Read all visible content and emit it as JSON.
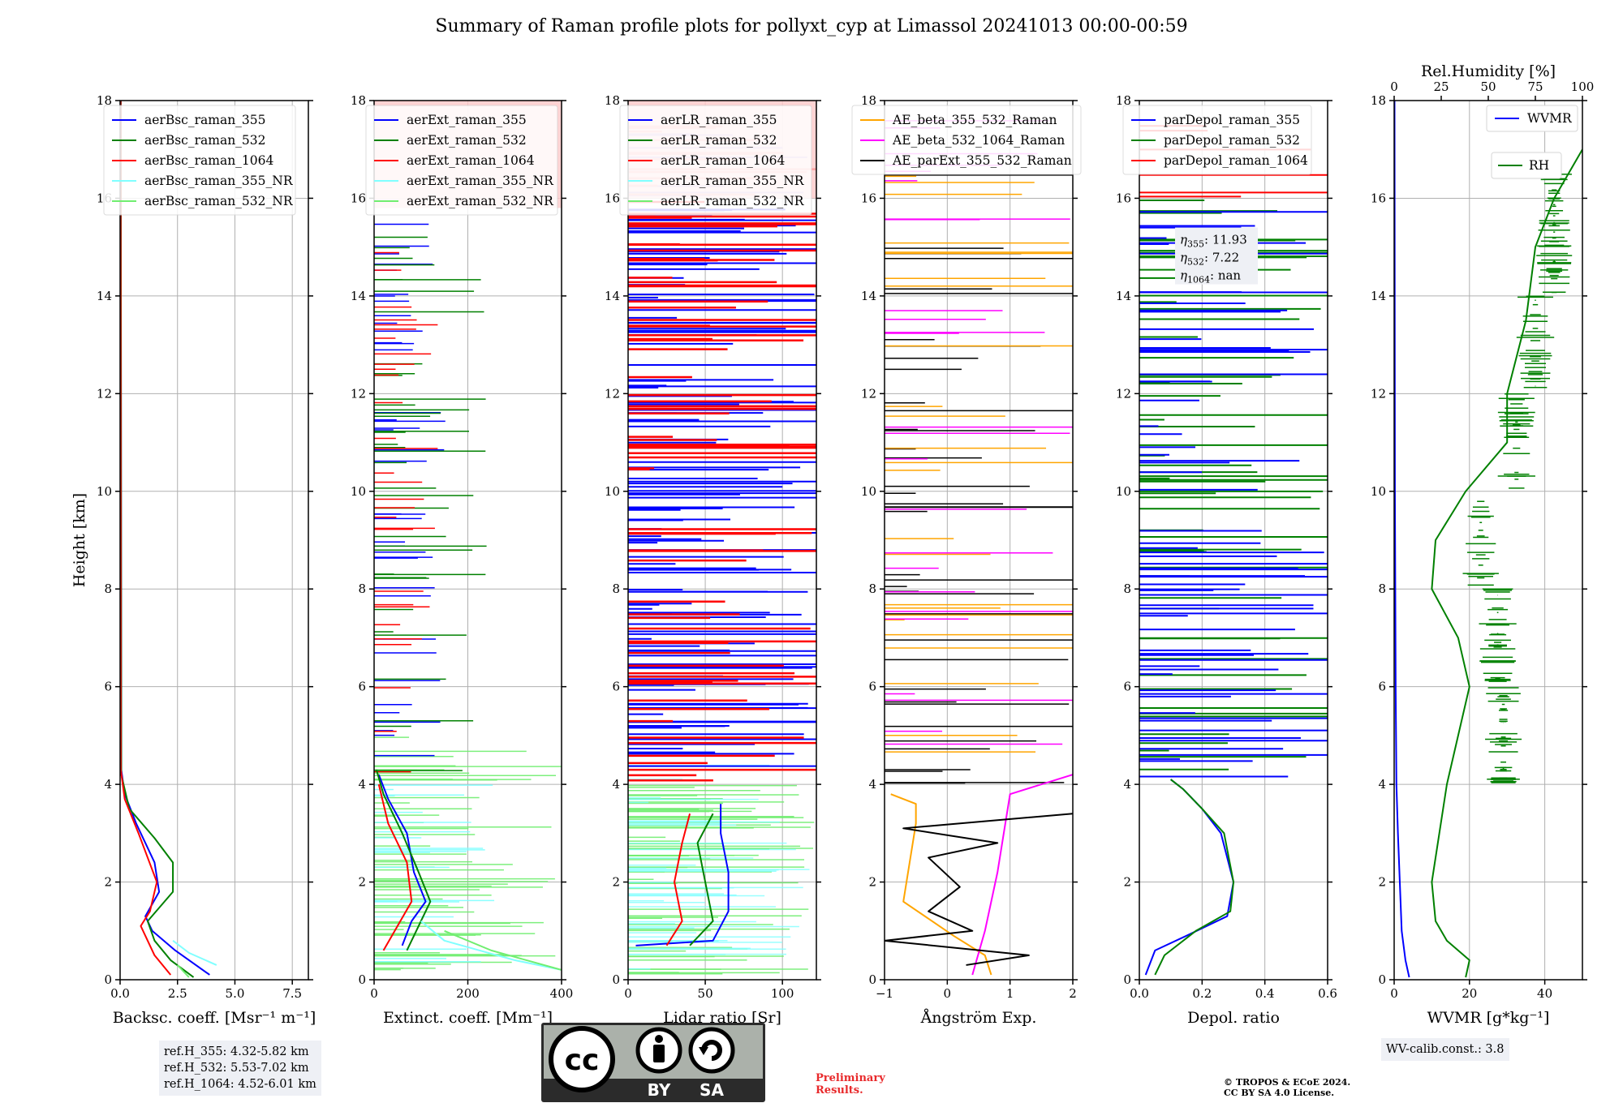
{
  "title": "Summary of Raman profile plots for pollyxt_cyp at Limassol 20241013 00:00-00:59",
  "colors": {
    "blue": "#0000ff",
    "green": "#008000",
    "red": "#ff0000",
    "cyan": "#80ffff",
    "lightgreen": "#70ee70",
    "orange": "#ffa500",
    "magenta": "#ff00ff",
    "black": "#000000"
  },
  "chart_data": [
    {
      "type": "line",
      "xlabel": "Backsc. coeff. [Msr⁻¹ m⁻¹]",
      "ylabel": "Height [km]",
      "xlim": [
        0,
        8.2
      ],
      "ylim": [
        0,
        18
      ],
      "xticks": [
        0,
        2.5,
        5,
        7.5
      ],
      "xtick_labels": [
        "0.0",
        "2.5",
        "5.0",
        "7.5"
      ],
      "legend_position": "top-right",
      "series": [
        {
          "name": "aerBsc_raman_355",
          "color": "blue",
          "points": [
            [
              3.9,
              0.1
            ],
            [
              2.4,
              0.6
            ],
            [
              1.4,
              1.0
            ],
            [
              1.1,
              1.3
            ],
            [
              1.7,
              1.8
            ],
            [
              1.5,
              2.4
            ],
            [
              0.7,
              3.2
            ],
            [
              0.2,
              3.8
            ],
            [
              0.05,
              4.3
            ],
            [
              0.03,
              18
            ]
          ]
        },
        {
          "name": "aerBsc_raman_532",
          "color": "green",
          "points": [
            [
              3.2,
              0.05
            ],
            [
              2.2,
              0.4
            ],
            [
              1.5,
              0.8
            ],
            [
              1.2,
              1.2
            ],
            [
              2.3,
              1.8
            ],
            [
              2.3,
              2.4
            ],
            [
              1.5,
              2.9
            ],
            [
              0.4,
              3.5
            ],
            [
              0.05,
              4.2
            ],
            [
              0.03,
              18
            ]
          ]
        },
        {
          "name": "aerBsc_raman_1064",
          "color": "red",
          "points": [
            [
              2.2,
              0.1
            ],
            [
              1.5,
              0.5
            ],
            [
              0.9,
              1.1
            ],
            [
              1.3,
              1.4
            ],
            [
              1.6,
              2.0
            ],
            [
              0.8,
              3.0
            ],
            [
              0.2,
              3.7
            ],
            [
              0.03,
              4.3
            ],
            [
              0.02,
              18
            ]
          ]
        },
        {
          "name": "aerBsc_raman_355_NR",
          "color": "cyan",
          "points": [
            [
              4.2,
              0.3
            ],
            [
              3.0,
              0.55
            ],
            [
              2.3,
              0.8
            ]
          ]
        },
        {
          "name": "aerBsc_raman_532_NR",
          "color": "lightgreen",
          "points": [
            [
              3.0,
              0.05
            ],
            [
              2.5,
              0.3
            ]
          ]
        }
      ]
    },
    {
      "type": "line",
      "xlabel": "Extinct. coeff. [Mm⁻¹]",
      "xlim": [
        0,
        400
      ],
      "ylim": [
        0,
        18
      ],
      "xticks": [
        0,
        200,
        400
      ],
      "xtick_labels": [
        "0",
        "200",
        "400"
      ],
      "legend_position": "top-right",
      "series": [
        {
          "name": "aerExt_raman_355",
          "color": "blue",
          "points": [
            [
              60,
              0.7
            ],
            [
              80,
              1.2
            ],
            [
              110,
              1.6
            ],
            [
              85,
              2.2
            ],
            [
              70,
              3.0
            ],
            [
              30,
              3.7
            ],
            [
              10,
              4.2
            ]
          ]
        },
        {
          "name": "aerExt_raman_532",
          "color": "green",
          "points": [
            [
              70,
              0.6
            ],
            [
              100,
              1.2
            ],
            [
              120,
              1.6
            ],
            [
              95,
              2.2
            ],
            [
              60,
              3.0
            ],
            [
              20,
              3.8
            ],
            [
              5,
              4.3
            ]
          ]
        },
        {
          "name": "aerExt_raman_1064",
          "color": "red",
          "points": [
            [
              20,
              0.6
            ],
            [
              50,
              1.1
            ],
            [
              80,
              1.6
            ],
            [
              70,
              2.4
            ],
            [
              30,
              3.2
            ],
            [
              10,
              4.0
            ]
          ]
        },
        {
          "name": "aerExt_raman_355_NR",
          "color": "cyan",
          "points": [
            [
              400,
              0.2
            ],
            [
              300,
              0.4
            ],
            [
              150,
              0.8
            ],
            [
              100,
              1.2
            ]
          ]
        },
        {
          "name": "aerExt_raman_532_NR",
          "color": "lightgreen",
          "points": [
            [
              400,
              0.2
            ],
            [
              250,
              0.6
            ],
            [
              150,
              1.0
            ]
          ]
        }
      ]
    },
    {
      "type": "line",
      "xlabel": "Lidar ratio [Sr]",
      "xlim": [
        0,
        122
      ],
      "ylim": [
        0,
        18
      ],
      "xticks": [
        0,
        50,
        100
      ],
      "xtick_labels": [
        "0",
        "50",
        "100"
      ],
      "legend_position": "top-right",
      "series": [
        {
          "name": "aerLR_raman_355",
          "color": "blue",
          "points": [
            [
              5,
              0.7
            ],
            [
              55,
              0.8
            ],
            [
              65,
              1.4
            ],
            [
              65,
              2.2
            ],
            [
              60,
              3.0
            ],
            [
              60,
              3.6
            ]
          ]
        },
        {
          "name": "aerLR_raman_532",
          "color": "green",
          "points": [
            [
              40,
              0.7
            ],
            [
              55,
              1.2
            ],
            [
              50,
              2.0
            ],
            [
              45,
              2.8
            ],
            [
              55,
              3.4
            ]
          ]
        },
        {
          "name": "aerLR_raman_1064",
          "color": "red",
          "points": [
            [
              25,
              0.7
            ],
            [
              35,
              1.2
            ],
            [
              30,
              2.0
            ],
            [
              35,
              2.8
            ],
            [
              40,
              3.4
            ]
          ]
        },
        {
          "name": "aerLR_raman_355_NR",
          "color": "cyan",
          "points": []
        },
        {
          "name": "aerLR_raman_532_NR",
          "color": "lightgreen",
          "points": []
        }
      ]
    },
    {
      "type": "line",
      "xlabel": "Ångström Exp.",
      "xlim": [
        -1,
        2
      ],
      "ylim": [
        0,
        18
      ],
      "xticks": [
        -1,
        0,
        1,
        2
      ],
      "xtick_labels": [
        "−1",
        "0",
        "1",
        "2"
      ],
      "legend_position": "top-left",
      "series": [
        {
          "name": "AE_beta_355_532_Raman",
          "color": "orange",
          "points": [
            [
              0.7,
              0.1
            ],
            [
              0.6,
              0.5
            ],
            [
              0.1,
              0.9
            ],
            [
              -0.7,
              1.6
            ],
            [
              -0.6,
              2.4
            ],
            [
              -0.5,
              3.2
            ],
            [
              -0.5,
              3.6
            ],
            [
              -0.9,
              3.8
            ]
          ]
        },
        {
          "name": "AE_beta_532_1064_Raman",
          "color": "magenta",
          "points": [
            [
              0.4,
              0.1
            ],
            [
              0.6,
              1.0
            ],
            [
              0.8,
              2.2
            ],
            [
              0.9,
              3.0
            ],
            [
              1.0,
              3.8
            ],
            [
              2.0,
              4.2
            ]
          ]
        },
        {
          "name": "AE_parExt_355_532_Raman",
          "color": "black",
          "points": [
            [
              0.3,
              0.3
            ],
            [
              1.3,
              0.5
            ],
            [
              -1,
              0.8
            ],
            [
              0.4,
              1.0
            ],
            [
              -0.3,
              1.4
            ],
            [
              0.2,
              1.9
            ],
            [
              -0.3,
              2.5
            ],
            [
              0.8,
              2.8
            ],
            [
              -0.7,
              3.1
            ],
            [
              2,
              3.4
            ]
          ]
        }
      ]
    },
    {
      "type": "line",
      "xlabel": "Depol. ratio",
      "xlim": [
        0,
        0.6
      ],
      "ylim": [
        0,
        18
      ],
      "xticks": [
        0,
        0.2,
        0.4,
        0.6
      ],
      "xtick_labels": [
        "0.0",
        "0.2",
        "0.4",
        "0.6"
      ],
      "legend_position": "top-right",
      "series": [
        {
          "name": "parDepol_raman_355",
          "color": "blue",
          "points": [
            [
              0.02,
              0.1
            ],
            [
              0.05,
              0.6
            ],
            [
              0.15,
              0.9
            ],
            [
              0.28,
              1.3
            ],
            [
              0.3,
              2.0
            ],
            [
              0.26,
              3.0
            ],
            [
              0.2,
              3.5
            ],
            [
              0.14,
              3.9
            ],
            [
              0.1,
              4.1
            ]
          ]
        },
        {
          "name": "parDepol_raman_532",
          "color": "green",
          "points": [
            [
              0.05,
              0.1
            ],
            [
              0.08,
              0.5
            ],
            [
              0.18,
              1.0
            ],
            [
              0.29,
              1.4
            ],
            [
              0.3,
              2.0
            ],
            [
              0.27,
              3.0
            ],
            [
              0.2,
              3.5
            ],
            [
              0.14,
              3.9
            ],
            [
              0.1,
              4.1
            ]
          ]
        },
        {
          "name": "parDepol_raman_1064",
          "color": "red",
          "points": []
        }
      ],
      "annotation": {
        "eta355": ": 11.93",
        "eta532": ": 7.22",
        "eta1064": ": nan"
      }
    },
    {
      "type": "line",
      "xlabel": "WVMR [g*kg⁻¹]",
      "x2label": "Rel.Humidity [%]",
      "xlim": [
        0,
        50
      ],
      "ylim": [
        0,
        18
      ],
      "xticks": [
        0,
        20,
        40
      ],
      "xtick_labels": [
        "0",
        "20",
        "40"
      ],
      "x2lim": [
        0,
        100
      ],
      "x2ticks": [
        0,
        25,
        50,
        75,
        100
      ],
      "x2tick_labels": [
        "0",
        "25",
        "50",
        "75",
        "100"
      ],
      "legend_position": "top-right",
      "series": [
        {
          "name": "WVMR",
          "color": "blue",
          "points": [
            [
              4,
              0.05
            ],
            [
              3,
              0.4
            ],
            [
              2,
              1.0
            ],
            [
              1.5,
              2.0
            ],
            [
              1,
              3.0
            ],
            [
              0.6,
              4.0
            ],
            [
              0.4,
              6.0
            ],
            [
              0.2,
              10
            ],
            [
              0.1,
              18
            ]
          ]
        },
        {
          "name": "RH",
          "color": "green",
          "points": [
            [
              38,
              0.05
            ],
            [
              40,
              0.4
            ],
            [
              28,
              0.8
            ],
            [
              22,
              1.2
            ],
            [
              20,
              2.0
            ],
            [
              24,
              3.0
            ],
            [
              28,
              4.0
            ],
            [
              34,
              5.0
            ],
            [
              40,
              6.0
            ],
            [
              34,
              7.0
            ],
            [
              20,
              8.0
            ],
            [
              22,
              9.0
            ],
            [
              38,
              10.0
            ],
            [
              60,
              11.0
            ],
            [
              60,
              12.0
            ],
            [
              70,
              13.5
            ],
            [
              75,
              15.0
            ],
            [
              85,
              16.0
            ],
            [
              100,
              17.0
            ]
          ]
        }
      ]
    }
  ],
  "ref_heights": [
    "ref.H_355: 4.32-5.82 km",
    "ref.H_532: 5.53-7.02 km",
    "ref.H_1064: 4.52-6.01 km"
  ],
  "wv_calib": "WV-calib.const.: 3.8",
  "preliminary": [
    "Preliminary",
    "Results."
  ],
  "copyright": [
    "© TROPOS & ECoE 2024.",
    "CC BY SA 4.0 License."
  ],
  "license_logo": {
    "cc": "cc",
    "by": "BY",
    "sa": "SA"
  }
}
